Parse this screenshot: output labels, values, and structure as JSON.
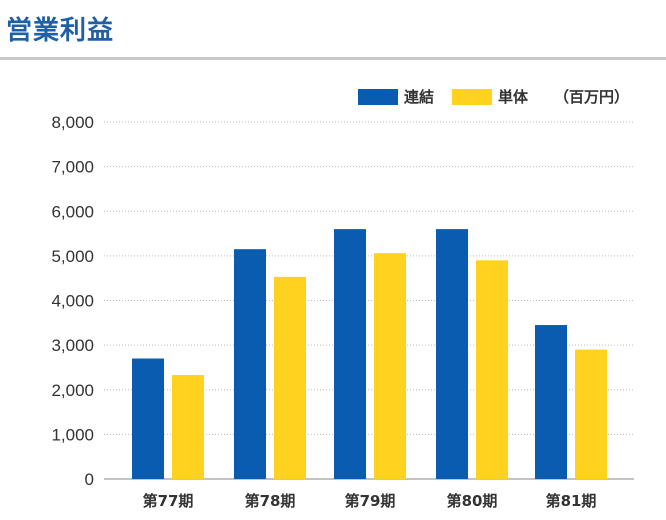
{
  "page": {
    "title": "営業利益"
  },
  "colors": {
    "consolidated": "#0a5cb0",
    "single": "#ffd21f",
    "title": "#1f5fa6",
    "grid": "#bbbbbb"
  },
  "chart_data": {
    "type": "bar",
    "categories": [
      "第77期",
      "第78期",
      "第79期",
      "第80期",
      "第81期"
    ],
    "series": [
      {
        "name": "連結",
        "values": [
          2700,
          5150,
          5600,
          5600,
          3450
        ]
      },
      {
        "name": "単体",
        "values": [
          2330,
          4530,
          5060,
          4900,
          2900
        ]
      }
    ],
    "unit": "（百万円）",
    "ylim": [
      0,
      8000
    ],
    "yticks": [
      "8,000",
      "7,000",
      "6,000",
      "5,000",
      "4,000",
      "3,000",
      "2,000",
      "1,000",
      "0"
    ],
    "ytick_values": [
      8000,
      7000,
      6000,
      5000,
      4000,
      3000,
      2000,
      1000,
      0
    ],
    "grid": true,
    "legend": "top-right"
  }
}
